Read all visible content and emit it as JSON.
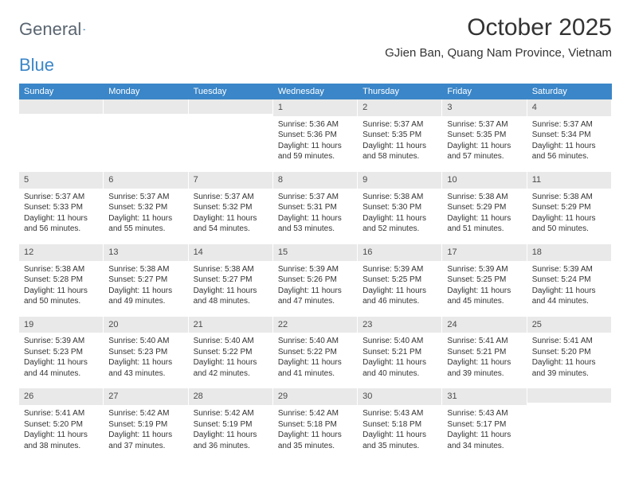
{
  "logo": {
    "text1": "General",
    "text2": "Blue",
    "color1": "#5a6570",
    "color2": "#3a86c8"
  },
  "title": "October 2025",
  "location": "GJien Ban, Quang Nam Province, Vietnam",
  "header_bg": "#3a86c8",
  "daynum_bg": "#e9e9e9",
  "dow": [
    "Sunday",
    "Monday",
    "Tuesday",
    "Wednesday",
    "Thursday",
    "Friday",
    "Saturday"
  ],
  "weeks": [
    [
      {
        "n": "",
        "l": []
      },
      {
        "n": "",
        "l": []
      },
      {
        "n": "",
        "l": []
      },
      {
        "n": "1",
        "l": [
          "Sunrise: 5:36 AM",
          "Sunset: 5:36 PM",
          "Daylight: 11 hours",
          "and 59 minutes."
        ]
      },
      {
        "n": "2",
        "l": [
          "Sunrise: 5:37 AM",
          "Sunset: 5:35 PM",
          "Daylight: 11 hours",
          "and 58 minutes."
        ]
      },
      {
        "n": "3",
        "l": [
          "Sunrise: 5:37 AM",
          "Sunset: 5:35 PM",
          "Daylight: 11 hours",
          "and 57 minutes."
        ]
      },
      {
        "n": "4",
        "l": [
          "Sunrise: 5:37 AM",
          "Sunset: 5:34 PM",
          "Daylight: 11 hours",
          "and 56 minutes."
        ]
      }
    ],
    [
      {
        "n": "5",
        "l": [
          "Sunrise: 5:37 AM",
          "Sunset: 5:33 PM",
          "Daylight: 11 hours",
          "and 56 minutes."
        ]
      },
      {
        "n": "6",
        "l": [
          "Sunrise: 5:37 AM",
          "Sunset: 5:32 PM",
          "Daylight: 11 hours",
          "and 55 minutes."
        ]
      },
      {
        "n": "7",
        "l": [
          "Sunrise: 5:37 AM",
          "Sunset: 5:32 PM",
          "Daylight: 11 hours",
          "and 54 minutes."
        ]
      },
      {
        "n": "8",
        "l": [
          "Sunrise: 5:37 AM",
          "Sunset: 5:31 PM",
          "Daylight: 11 hours",
          "and 53 minutes."
        ]
      },
      {
        "n": "9",
        "l": [
          "Sunrise: 5:38 AM",
          "Sunset: 5:30 PM",
          "Daylight: 11 hours",
          "and 52 minutes."
        ]
      },
      {
        "n": "10",
        "l": [
          "Sunrise: 5:38 AM",
          "Sunset: 5:29 PM",
          "Daylight: 11 hours",
          "and 51 minutes."
        ]
      },
      {
        "n": "11",
        "l": [
          "Sunrise: 5:38 AM",
          "Sunset: 5:29 PM",
          "Daylight: 11 hours",
          "and 50 minutes."
        ]
      }
    ],
    [
      {
        "n": "12",
        "l": [
          "Sunrise: 5:38 AM",
          "Sunset: 5:28 PM",
          "Daylight: 11 hours",
          "and 50 minutes."
        ]
      },
      {
        "n": "13",
        "l": [
          "Sunrise: 5:38 AM",
          "Sunset: 5:27 PM",
          "Daylight: 11 hours",
          "and 49 minutes."
        ]
      },
      {
        "n": "14",
        "l": [
          "Sunrise: 5:38 AM",
          "Sunset: 5:27 PM",
          "Daylight: 11 hours",
          "and 48 minutes."
        ]
      },
      {
        "n": "15",
        "l": [
          "Sunrise: 5:39 AM",
          "Sunset: 5:26 PM",
          "Daylight: 11 hours",
          "and 47 minutes."
        ]
      },
      {
        "n": "16",
        "l": [
          "Sunrise: 5:39 AM",
          "Sunset: 5:25 PM",
          "Daylight: 11 hours",
          "and 46 minutes."
        ]
      },
      {
        "n": "17",
        "l": [
          "Sunrise: 5:39 AM",
          "Sunset: 5:25 PM",
          "Daylight: 11 hours",
          "and 45 minutes."
        ]
      },
      {
        "n": "18",
        "l": [
          "Sunrise: 5:39 AM",
          "Sunset: 5:24 PM",
          "Daylight: 11 hours",
          "and 44 minutes."
        ]
      }
    ],
    [
      {
        "n": "19",
        "l": [
          "Sunrise: 5:39 AM",
          "Sunset: 5:23 PM",
          "Daylight: 11 hours",
          "and 44 minutes."
        ]
      },
      {
        "n": "20",
        "l": [
          "Sunrise: 5:40 AM",
          "Sunset: 5:23 PM",
          "Daylight: 11 hours",
          "and 43 minutes."
        ]
      },
      {
        "n": "21",
        "l": [
          "Sunrise: 5:40 AM",
          "Sunset: 5:22 PM",
          "Daylight: 11 hours",
          "and 42 minutes."
        ]
      },
      {
        "n": "22",
        "l": [
          "Sunrise: 5:40 AM",
          "Sunset: 5:22 PM",
          "Daylight: 11 hours",
          "and 41 minutes."
        ]
      },
      {
        "n": "23",
        "l": [
          "Sunrise: 5:40 AM",
          "Sunset: 5:21 PM",
          "Daylight: 11 hours",
          "and 40 minutes."
        ]
      },
      {
        "n": "24",
        "l": [
          "Sunrise: 5:41 AM",
          "Sunset: 5:21 PM",
          "Daylight: 11 hours",
          "and 39 minutes."
        ]
      },
      {
        "n": "25",
        "l": [
          "Sunrise: 5:41 AM",
          "Sunset: 5:20 PM",
          "Daylight: 11 hours",
          "and 39 minutes."
        ]
      }
    ],
    [
      {
        "n": "26",
        "l": [
          "Sunrise: 5:41 AM",
          "Sunset: 5:20 PM",
          "Daylight: 11 hours",
          "and 38 minutes."
        ]
      },
      {
        "n": "27",
        "l": [
          "Sunrise: 5:42 AM",
          "Sunset: 5:19 PM",
          "Daylight: 11 hours",
          "and 37 minutes."
        ]
      },
      {
        "n": "28",
        "l": [
          "Sunrise: 5:42 AM",
          "Sunset: 5:19 PM",
          "Daylight: 11 hours",
          "and 36 minutes."
        ]
      },
      {
        "n": "29",
        "l": [
          "Sunrise: 5:42 AM",
          "Sunset: 5:18 PM",
          "Daylight: 11 hours",
          "and 35 minutes."
        ]
      },
      {
        "n": "30",
        "l": [
          "Sunrise: 5:43 AM",
          "Sunset: 5:18 PM",
          "Daylight: 11 hours",
          "and 35 minutes."
        ]
      },
      {
        "n": "31",
        "l": [
          "Sunrise: 5:43 AM",
          "Sunset: 5:17 PM",
          "Daylight: 11 hours",
          "and 34 minutes."
        ]
      },
      {
        "n": "",
        "l": []
      }
    ]
  ]
}
